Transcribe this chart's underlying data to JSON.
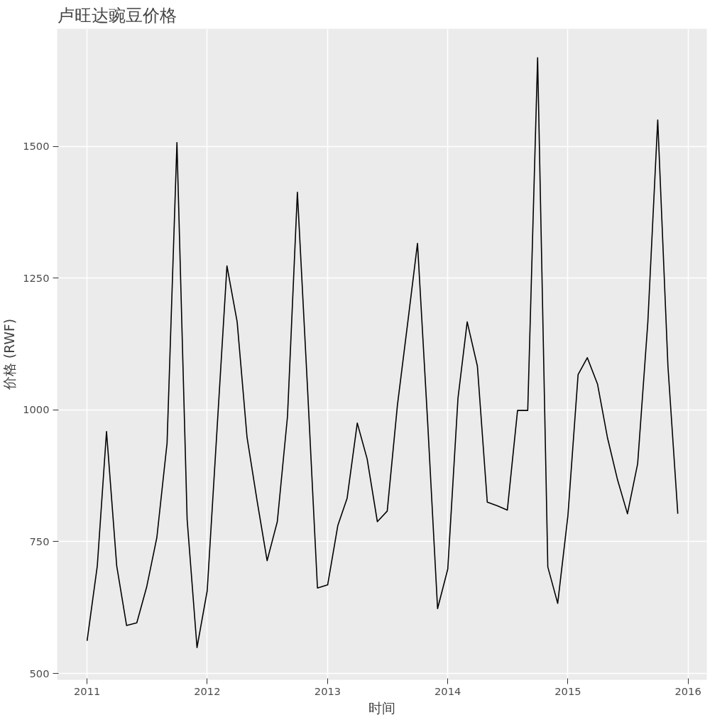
{
  "chart_data": {
    "type": "line",
    "title": "卢旺达豌豆价格",
    "xlabel": "时间",
    "ylabel": "价格 (RWF)",
    "x": [
      "2011-01",
      "2011-02",
      "2011-03",
      "2011-04",
      "2011-05",
      "2011-06",
      "2011-07",
      "2011-08",
      "2011-09",
      "2011-10",
      "2011-11",
      "2011-12",
      "2012-01",
      "2012-02",
      "2012-03",
      "2012-04",
      "2012-05",
      "2012-06",
      "2012-07",
      "2012-08",
      "2012-09",
      "2012-10",
      "2012-11",
      "2012-12",
      "2013-01",
      "2013-02",
      "2013-03",
      "2013-04",
      "2013-05",
      "2013-06",
      "2013-07",
      "2013-08",
      "2013-09",
      "2013-10",
      "2013-11",
      "2013-12",
      "2014-01",
      "2014-02",
      "2014-03",
      "2014-04",
      "2014-05",
      "2014-06",
      "2014-07",
      "2014-08",
      "2014-09",
      "2014-10",
      "2014-11",
      "2014-12",
      "2015-01",
      "2015-02",
      "2015-03",
      "2015-04",
      "2015-05",
      "2015-06",
      "2015-07",
      "2015-08",
      "2015-09",
      "2015-10",
      "2015-11",
      "2015-12"
    ],
    "series": [
      {
        "color": "#000000",
        "values": [
          562,
          704,
          959,
          704,
          591,
          596,
          664,
          758,
          937,
          1507,
          792,
          549,
          657,
          975,
          1273,
          1167,
          948,
          826,
          714,
          788,
          988,
          1413,
          1039,
          662,
          668,
          781,
          832,
          975,
          907,
          788,
          808,
          1009,
          1164,
          1316,
          975,
          623,
          698,
          1022,
          1167,
          1083,
          825,
          818,
          810,
          999,
          999,
          1668,
          702,
          633,
          799,
          1067,
          1099,
          1049,
          948,
          867,
          803,
          898,
          1167,
          1550,
          1083,
          803
        ]
      }
    ],
    "xlim": [
      "2010-10-02",
      "2016-02-27"
    ],
    "xticks": [
      {
        "value": "2011-01-01",
        "label": "2011"
      },
      {
        "value": "2012-01-01",
        "label": "2012"
      },
      {
        "value": "2013-01-01",
        "label": "2013"
      },
      {
        "value": "2014-01-01",
        "label": "2014"
      },
      {
        "value": "2015-01-01",
        "label": "2015"
      },
      {
        "value": "2016-01-01",
        "label": "2016"
      }
    ],
    "ylim": [
      488,
      1723
    ],
    "yticks": [
      500,
      750,
      1000,
      1250,
      1500
    ],
    "grid": true
  }
}
